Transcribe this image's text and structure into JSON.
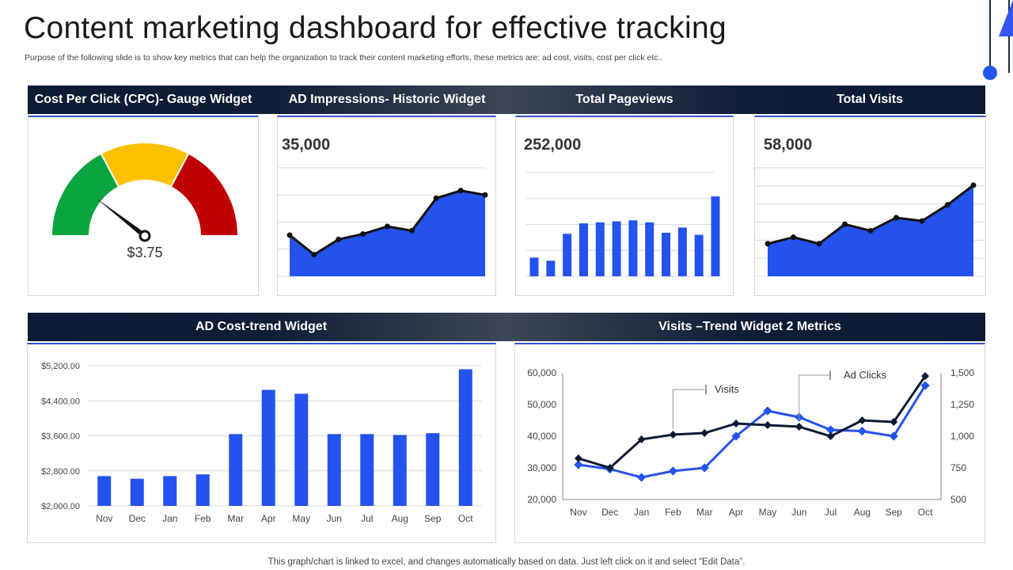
{
  "page": {
    "title": "Content marketing dashboard for effective tracking",
    "subtitle": "Purpose of the following slide is to show key metrics that can help the organization to track their content marketing efforts, these metrics are: ad cost, visits, cost per click etc..",
    "footer": "This graph/chart is linked to excel,  and changes automatically based on data. Just left click on it and select “Edit Data”."
  },
  "headers": {
    "cpc": "Cost Per Click (CPC)- Gauge Widget",
    "impressions": "AD Impressions-  Historic Widget",
    "pageviews": "Total Pageviews",
    "visits": "Total Visits",
    "adcost": "AD Cost-trend  Widget",
    "trend": "Visits –Trend Widget 2 Metrics"
  },
  "colors": {
    "accent": "#2452ee",
    "dark": "#0c1a33",
    "green": "#0aa540",
    "yellow": "#ffc000",
    "red": "#c00000",
    "line_dark": "#0c1a33"
  },
  "chart_data": [
    {
      "type": "gauge",
      "value_label": "$3.75",
      "segments": [
        "green",
        "yellow",
        "red"
      ],
      "needle_fraction": 0.21
    },
    {
      "type": "area",
      "headline": "35,000",
      "values": [
        38,
        20,
        34,
        39,
        46,
        42,
        72,
        79,
        75
      ]
    },
    {
      "type": "bar",
      "headline": "252,000",
      "values": [
        18,
        15,
        41,
        51,
        52,
        53,
        54,
        52,
        42,
        47,
        40,
        77
      ]
    },
    {
      "type": "area",
      "headline": "58,000",
      "values": [
        30,
        36,
        30,
        48,
        42,
        54,
        51,
        66,
        84
      ]
    },
    {
      "type": "bar",
      "categories": [
        "Nov",
        "Dec",
        "Jan",
        "Feb",
        "Mar",
        "Apr",
        "May",
        "Jun",
        "Jul",
        "Aug",
        "Sep",
        "Oct"
      ],
      "values": [
        2680,
        2620,
        2680,
        2720,
        3640,
        4650,
        4560,
        3640,
        3640,
        3620,
        3660,
        5120
      ],
      "ylim": [
        2000,
        5200
      ],
      "yticks": [
        "$5,200.00",
        "$4,400.00",
        "$3,600.00",
        "$2,800.00",
        "$2,000.00"
      ],
      "ytick_values": [
        5200,
        4400,
        3600,
        2800,
        2000
      ]
    },
    {
      "type": "line",
      "categories": [
        "Nov",
        "Dec",
        "Jan",
        "Feb",
        "Mar",
        "Apr",
        "May",
        "Jun",
        "Jul",
        "Aug",
        "Sep",
        "Oct"
      ],
      "series": [
        {
          "name": "Visits",
          "axis": "left",
          "color": "#0c1a33",
          "values": [
            33000,
            30000,
            39000,
            40500,
            41000,
            44000,
            43500,
            43000,
            40000,
            45000,
            44500,
            59000
          ]
        },
        {
          "name": "Ad Clicks",
          "axis": "right",
          "color": "#2452ee",
          "values": [
            775,
            740,
            675,
            725,
            750,
            1000,
            1200,
            1150,
            1050,
            1040,
            1000,
            1400
          ]
        }
      ],
      "ylim_left": [
        20000,
        60000
      ],
      "yticks_left": [
        "60,000",
        "50,000",
        "40,000",
        "30,000",
        "20,000"
      ],
      "ylim_right": [
        500,
        1500
      ],
      "yticks_right": [
        "1,500",
        "1,250",
        "1,000",
        "750",
        "500"
      ]
    }
  ]
}
